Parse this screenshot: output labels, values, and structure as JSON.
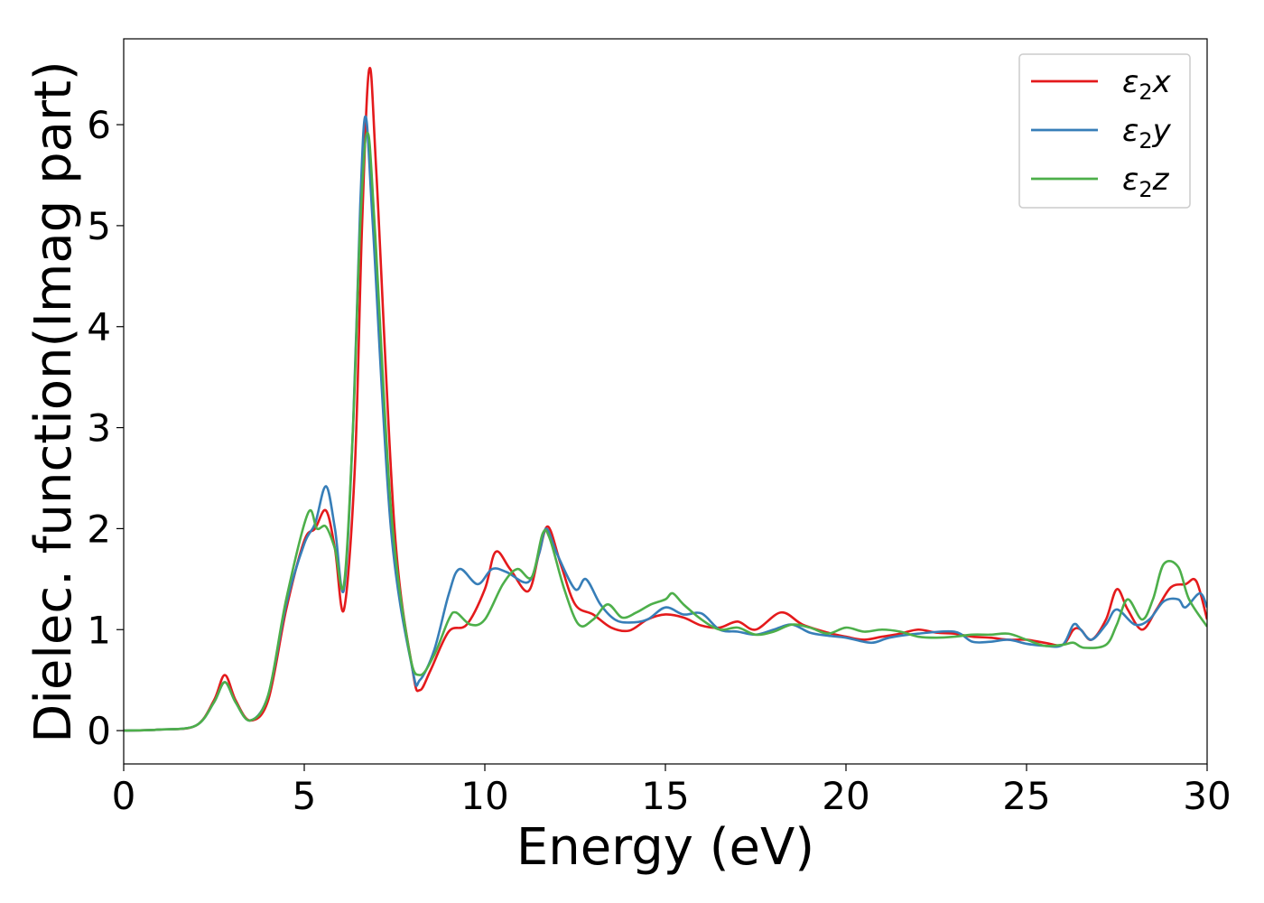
{
  "chart_data": {
    "type": "line",
    "xlabel": "Energy (eV)",
    "ylabel": "Dielec. function(Imag part)",
    "xlim": [
      0,
      30
    ],
    "ylim": [
      -0.33,
      6.85
    ],
    "xticks": [
      "0",
      "5",
      "10",
      "15",
      "20",
      "25",
      "30"
    ],
    "yticks": [
      "0",
      "1",
      "2",
      "3",
      "4",
      "5",
      "6"
    ],
    "grid": false,
    "legend_position": "top-right",
    "series": [
      {
        "name": "ε₂x",
        "legend_base": "ε",
        "legend_sub": "2",
        "legend_var": "x",
        "color": "#e41a1c",
        "points": [
          [
            0,
            0
          ],
          [
            1,
            0.01
          ],
          [
            2,
            0.05
          ],
          [
            2.5,
            0.3
          ],
          [
            2.8,
            0.55
          ],
          [
            3.1,
            0.3
          ],
          [
            3.5,
            0.1
          ],
          [
            4,
            0.3
          ],
          [
            4.5,
            1.2
          ],
          [
            5,
            1.88
          ],
          [
            5.3,
            2.0
          ],
          [
            5.6,
            2.18
          ],
          [
            5.85,
            1.8
          ],
          [
            6.1,
            1.2
          ],
          [
            6.4,
            2.6
          ],
          [
            6.6,
            5.0
          ],
          [
            6.8,
            6.55
          ],
          [
            7.0,
            5.5
          ],
          [
            7.5,
            2.0
          ],
          [
            8.0,
            0.6
          ],
          [
            8.2,
            0.4
          ],
          [
            8.5,
            0.6
          ],
          [
            9.0,
            0.98
          ],
          [
            9.5,
            1.05
          ],
          [
            10.0,
            1.4
          ],
          [
            10.3,
            1.77
          ],
          [
            10.7,
            1.6
          ],
          [
            11.2,
            1.38
          ],
          [
            11.5,
            1.75
          ],
          [
            11.75,
            2.02
          ],
          [
            12.1,
            1.65
          ],
          [
            12.5,
            1.25
          ],
          [
            13.0,
            1.15
          ],
          [
            13.5,
            1.02
          ],
          [
            14.0,
            0.99
          ],
          [
            14.5,
            1.1
          ],
          [
            15.0,
            1.15
          ],
          [
            15.5,
            1.12
          ],
          [
            16.0,
            1.04
          ],
          [
            16.5,
            1.02
          ],
          [
            17.0,
            1.08
          ],
          [
            17.5,
            1.0
          ],
          [
            18.2,
            1.17
          ],
          [
            18.8,
            1.05
          ],
          [
            19.5,
            0.97
          ],
          [
            20.0,
            0.93
          ],
          [
            20.5,
            0.9
          ],
          [
            21.0,
            0.93
          ],
          [
            21.5,
            0.96
          ],
          [
            22.0,
            1.0
          ],
          [
            22.5,
            0.97
          ],
          [
            23.0,
            0.96
          ],
          [
            23.5,
            0.93
          ],
          [
            24.0,
            0.92
          ],
          [
            24.5,
            0.9
          ],
          [
            25.0,
            0.9
          ],
          [
            25.5,
            0.87
          ],
          [
            26.0,
            0.85
          ],
          [
            26.3,
            1.0
          ],
          [
            26.5,
            1.0
          ],
          [
            26.8,
            0.9
          ],
          [
            27.2,
            1.1
          ],
          [
            27.5,
            1.4
          ],
          [
            27.8,
            1.2
          ],
          [
            28.2,
            1.0
          ],
          [
            28.6,
            1.2
          ],
          [
            29.0,
            1.42
          ],
          [
            29.4,
            1.45
          ],
          [
            29.7,
            1.48
          ],
          [
            30.0,
            1.1
          ]
        ]
      },
      {
        "name": "ε₂y",
        "legend_base": "ε",
        "legend_sub": "2",
        "legend_var": "y",
        "color": "#377eb8",
        "points": [
          [
            0,
            0
          ],
          [
            1,
            0.01
          ],
          [
            2,
            0.05
          ],
          [
            2.5,
            0.28
          ],
          [
            2.8,
            0.48
          ],
          [
            3.1,
            0.28
          ],
          [
            3.5,
            0.1
          ],
          [
            4,
            0.35
          ],
          [
            4.5,
            1.25
          ],
          [
            5,
            1.85
          ],
          [
            5.3,
            2.05
          ],
          [
            5.6,
            2.42
          ],
          [
            5.85,
            2.0
          ],
          [
            6.1,
            1.4
          ],
          [
            6.35,
            3.0
          ],
          [
            6.55,
            5.2
          ],
          [
            6.7,
            6.08
          ],
          [
            6.9,
            5.0
          ],
          [
            7.4,
            2.0
          ],
          [
            8.0,
            0.6
          ],
          [
            8.2,
            0.5
          ],
          [
            8.6,
            0.8
          ],
          [
            9.0,
            1.35
          ],
          [
            9.3,
            1.6
          ],
          [
            9.8,
            1.45
          ],
          [
            10.2,
            1.6
          ],
          [
            10.6,
            1.57
          ],
          [
            11.2,
            1.47
          ],
          [
            11.5,
            1.75
          ],
          [
            11.7,
            2.0
          ],
          [
            12.0,
            1.75
          ],
          [
            12.5,
            1.4
          ],
          [
            12.8,
            1.5
          ],
          [
            13.2,
            1.25
          ],
          [
            13.6,
            1.1
          ],
          [
            14.0,
            1.07
          ],
          [
            14.5,
            1.1
          ],
          [
            15.0,
            1.22
          ],
          [
            15.5,
            1.15
          ],
          [
            16.0,
            1.16
          ],
          [
            16.5,
            1.0
          ],
          [
            17.0,
            0.98
          ],
          [
            17.5,
            0.95
          ],
          [
            18.0,
            1.0
          ],
          [
            18.5,
            1.05
          ],
          [
            19.0,
            0.97
          ],
          [
            19.5,
            0.94
          ],
          [
            20.0,
            0.92
          ],
          [
            20.7,
            0.87
          ],
          [
            21.2,
            0.92
          ],
          [
            22.0,
            0.96
          ],
          [
            23.0,
            0.98
          ],
          [
            23.5,
            0.88
          ],
          [
            24.0,
            0.88
          ],
          [
            24.5,
            0.9
          ],
          [
            25.0,
            0.86
          ],
          [
            25.5,
            0.84
          ],
          [
            26.0,
            0.85
          ],
          [
            26.3,
            1.05
          ],
          [
            26.5,
            1.0
          ],
          [
            26.8,
            0.9
          ],
          [
            27.2,
            1.05
          ],
          [
            27.5,
            1.2
          ],
          [
            28.0,
            1.05
          ],
          [
            28.4,
            1.1
          ],
          [
            28.8,
            1.28
          ],
          [
            29.2,
            1.3
          ],
          [
            29.4,
            1.22
          ],
          [
            29.8,
            1.36
          ],
          [
            30.0,
            1.22
          ]
        ]
      },
      {
        "name": "ε₂z",
        "legend_base": "ε",
        "legend_sub": "2",
        "legend_var": "z",
        "color": "#4daf4a",
        "points": [
          [
            0,
            0
          ],
          [
            1,
            0.01
          ],
          [
            2,
            0.05
          ],
          [
            2.5,
            0.28
          ],
          [
            2.8,
            0.48
          ],
          [
            3.1,
            0.28
          ],
          [
            3.5,
            0.1
          ],
          [
            4,
            0.35
          ],
          [
            4.5,
            1.3
          ],
          [
            5.1,
            2.15
          ],
          [
            5.35,
            2.0
          ],
          [
            5.6,
            2.02
          ],
          [
            5.85,
            1.8
          ],
          [
            6.1,
            1.45
          ],
          [
            6.35,
            3.0
          ],
          [
            6.55,
            5.0
          ],
          [
            6.75,
            5.92
          ],
          [
            6.95,
            5.0
          ],
          [
            7.4,
            2.2
          ],
          [
            7.9,
            0.8
          ],
          [
            8.2,
            0.55
          ],
          [
            8.6,
            0.75
          ],
          [
            9.0,
            1.1
          ],
          [
            9.2,
            1.17
          ],
          [
            9.6,
            1.05
          ],
          [
            10.0,
            1.1
          ],
          [
            10.5,
            1.45
          ],
          [
            10.9,
            1.6
          ],
          [
            11.3,
            1.52
          ],
          [
            11.6,
            1.95
          ],
          [
            11.8,
            1.9
          ],
          [
            12.2,
            1.4
          ],
          [
            12.6,
            1.05
          ],
          [
            13.0,
            1.1
          ],
          [
            13.4,
            1.25
          ],
          [
            13.8,
            1.12
          ],
          [
            14.2,
            1.17
          ],
          [
            14.6,
            1.25
          ],
          [
            15.0,
            1.3
          ],
          [
            15.2,
            1.36
          ],
          [
            15.5,
            1.25
          ],
          [
            16.0,
            1.1
          ],
          [
            16.5,
            1.0
          ],
          [
            17.0,
            1.02
          ],
          [
            17.5,
            0.95
          ],
          [
            18.0,
            0.98
          ],
          [
            18.5,
            1.05
          ],
          [
            19.0,
            1.02
          ],
          [
            19.5,
            0.96
          ],
          [
            20.0,
            1.02
          ],
          [
            20.5,
            0.98
          ],
          [
            21.0,
            1.0
          ],
          [
            21.5,
            0.98
          ],
          [
            22.0,
            0.93
          ],
          [
            22.5,
            0.92
          ],
          [
            23.0,
            0.93
          ],
          [
            23.5,
            0.95
          ],
          [
            24.0,
            0.95
          ],
          [
            24.5,
            0.96
          ],
          [
            25.0,
            0.9
          ],
          [
            25.5,
            0.84
          ],
          [
            26.0,
            0.85
          ],
          [
            26.3,
            0.87
          ],
          [
            26.6,
            0.82
          ],
          [
            27.2,
            0.85
          ],
          [
            27.5,
            1.05
          ],
          [
            27.8,
            1.3
          ],
          [
            28.2,
            1.1
          ],
          [
            28.5,
            1.3
          ],
          [
            28.8,
            1.65
          ],
          [
            29.2,
            1.62
          ],
          [
            29.5,
            1.3
          ],
          [
            30.0,
            1.03
          ]
        ]
      }
    ]
  }
}
